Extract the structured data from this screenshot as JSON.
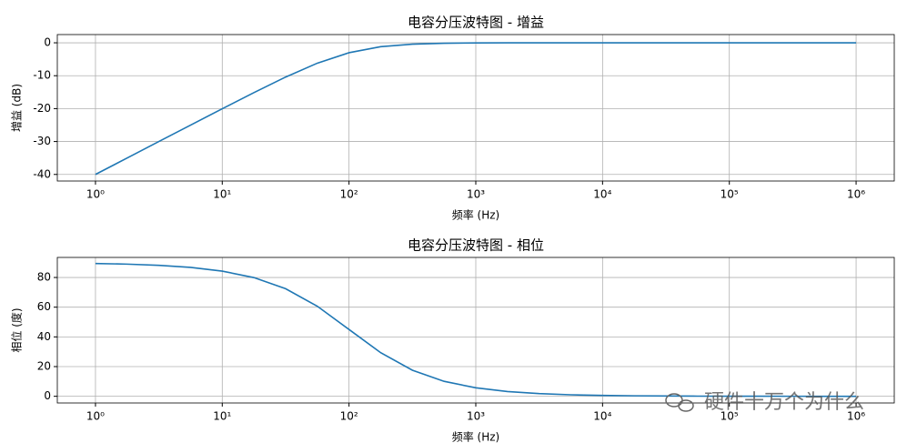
{
  "chart_data": [
    {
      "type": "line",
      "title": "电容分压波特图 - 增益",
      "xlabel": "频率 (Hz)",
      "ylabel": "增益 (dB)",
      "x": [
        1,
        1.778,
        3.162,
        5.623,
        10,
        17.78,
        31.62,
        56.23,
        100,
        177.8,
        316.2,
        562.3,
        1000,
        1778,
        3162,
        5623,
        10000,
        17783,
        31623,
        56234,
        100000,
        177828,
        316228,
        562341,
        1000000
      ],
      "values": [
        -40.0,
        -35.0,
        -30.0,
        -25.01,
        -20.04,
        -15.13,
        -10.41,
        -6.19,
        -3.01,
        -1.19,
        -0.41,
        -0.135,
        -0.043,
        -0.014,
        -0.004,
        -0.001,
        0,
        0,
        0,
        0,
        0,
        0,
        0,
        0,
        0
      ],
      "color": "#1f77b4",
      "xlog": true,
      "grid": true,
      "xlim": [
        0.5,
        2000000
      ],
      "ylim": [
        -42,
        2.5
      ],
      "xticks": [
        {
          "value": 1,
          "label": "10⁰"
        },
        {
          "value": 10,
          "label": "10¹"
        },
        {
          "value": 100,
          "label": "10²"
        },
        {
          "value": 1000,
          "label": "10³"
        },
        {
          "value": 10000,
          "label": "10⁴"
        },
        {
          "value": 100000,
          "label": "10⁵"
        },
        {
          "value": 1000000,
          "label": "10⁶"
        }
      ],
      "yticks": [
        0,
        -10,
        -20,
        -30,
        -40
      ]
    },
    {
      "type": "line",
      "title": "电容分压波特图 - 相位",
      "xlabel": "频率 (Hz)",
      "ylabel": "相位 (度)",
      "x": [
        1,
        1.778,
        3.162,
        5.623,
        10,
        17.78,
        31.62,
        56.23,
        100,
        177.8,
        316.2,
        562.3,
        1000,
        1778,
        3162,
        5623,
        10000,
        17783,
        31623,
        56234,
        100000,
        177828,
        316228,
        562341,
        1000000
      ],
      "values": [
        89.43,
        88.98,
        88.19,
        86.78,
        84.29,
        79.92,
        72.45,
        60.64,
        45.0,
        29.36,
        17.55,
        10.08,
        5.71,
        3.22,
        1.81,
        1.02,
        0.57,
        0.32,
        0.18,
        0.1,
        0.057,
        0.032,
        0.018,
        0.01,
        0.006
      ],
      "color": "#1f77b4",
      "xlog": true,
      "grid": true,
      "xlim": [
        0.5,
        2000000
      ],
      "ylim": [
        -4.5,
        93.5
      ],
      "xticks": [
        {
          "value": 1,
          "label": "10⁰"
        },
        {
          "value": 10,
          "label": "10¹"
        },
        {
          "value": 100,
          "label": "10²"
        },
        {
          "value": 1000,
          "label": "10³"
        },
        {
          "value": 10000,
          "label": "10⁴"
        },
        {
          "value": 100000,
          "label": "10⁵"
        },
        {
          "value": 1000000,
          "label": "10⁶"
        }
      ],
      "yticks": [
        0,
        20,
        40,
        60,
        80
      ]
    }
  ],
  "watermark": "硬件十万个为什么"
}
